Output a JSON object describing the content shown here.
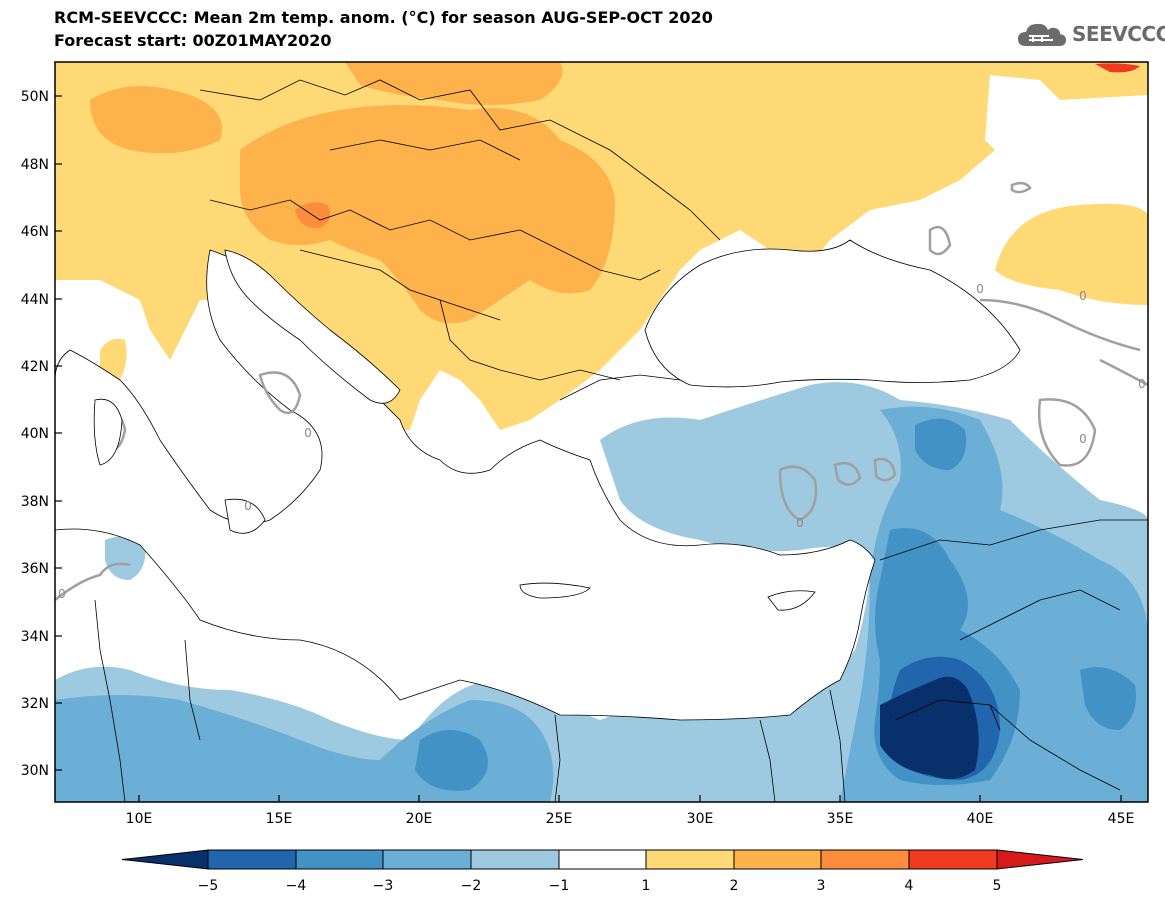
{
  "header": {
    "title_line1": "RCM-SEEVCCC: Mean 2m temp. anom. (°C) for season AUG-SEP-OCT 2020",
    "title_line2": "Forecast start: 00Z01MAY2020"
  },
  "logo": {
    "text": "SEEVCCC",
    "icon": "cloud-icon"
  },
  "map": {
    "lat_labels": [
      "50N",
      "48N",
      "46N",
      "44N",
      "42N",
      "40N",
      "38N",
      "36N",
      "34N",
      "32N",
      "30N"
    ],
    "lon_labels": [
      "10E",
      "15E",
      "20E",
      "25E",
      "30E",
      "35E",
      "40E",
      "45E"
    ],
    "contour_labels": [
      "0",
      "0",
      "0",
      "0",
      "0",
      "0",
      "0",
      "0"
    ]
  },
  "colorbar": {
    "labels": [
      "−5",
      "−4",
      "−3",
      "−2",
      "−1",
      "1",
      "2",
      "3",
      "4",
      "5"
    ],
    "colors": [
      "#08306b",
      "#2166ac",
      "#4292c6",
      "#6baed6",
      "#9ecae1",
      "#ffffff",
      "#fed976",
      "#fdb24c",
      "#fd8d3c",
      "#f03b20",
      "#d7191c"
    ]
  },
  "palette": {
    "land_bg": "#ffffff",
    "warm_1": "#fed976",
    "warm_2": "#fdb24c",
    "warm_3": "#fd8d3c",
    "warm_4": "#f03b20",
    "cold_1": "#9ecae1",
    "cold_2": "#6baed6",
    "cold_3": "#4292c6",
    "cold_4": "#2166ac",
    "cold_5": "#08306b",
    "zero_contour": "#a0a0a0"
  }
}
